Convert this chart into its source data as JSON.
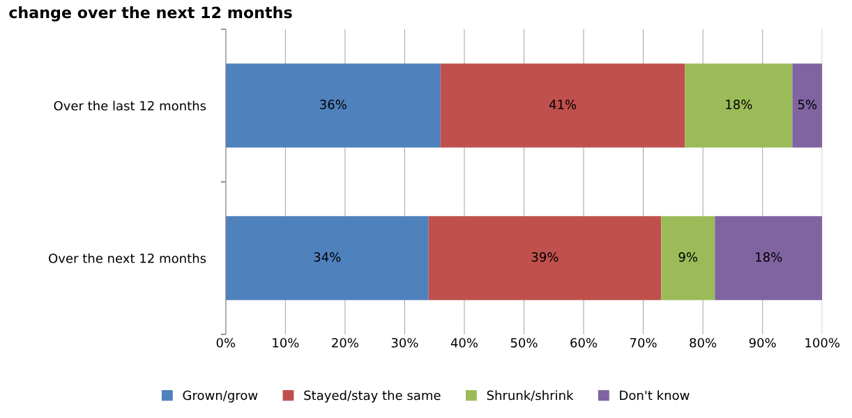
{
  "chart_data": {
    "type": "bar",
    "orientation": "horizontal",
    "stacked": true,
    "title": "change over the next 12 months",
    "categories": [
      "Over the last 12 months",
      "Over the next 12 months"
    ],
    "series": [
      {
        "name": "Grown/grow",
        "color": "#4f81bd",
        "values": [
          36,
          34
        ],
        "value_labels": [
          "36%",
          "34%"
        ]
      },
      {
        "name": "Stayed/stay the same",
        "color": "#c0504d",
        "values": [
          41,
          39
        ],
        "value_labels": [
          "41%",
          "39%"
        ]
      },
      {
        "name": "Shrunk/shrink",
        "color": "#9bbb59",
        "values": [
          18,
          9
        ],
        "value_labels": [
          "18%",
          "9%"
        ]
      },
      {
        "name": "Don't know",
        "color": "#8064a2",
        "values": [
          5,
          18
        ],
        "value_labels": [
          "5%",
          "18%"
        ]
      }
    ],
    "xlim": [
      0,
      100
    ],
    "xticks": [
      {
        "value": 0,
        "label": "0%"
      },
      {
        "value": 10,
        "label": "10%"
      },
      {
        "value": 20,
        "label": "20%"
      },
      {
        "value": 30,
        "label": "30%"
      },
      {
        "value": 40,
        "label": "40%"
      },
      {
        "value": 50,
        "label": "50%"
      },
      {
        "value": 60,
        "label": "60%"
      },
      {
        "value": 70,
        "label": "70%"
      },
      {
        "value": 80,
        "label": "80%"
      },
      {
        "value": 90,
        "label": "90%"
      },
      {
        "value": 100,
        "label": "100%"
      }
    ],
    "grid": "x",
    "legend": "bottom"
  }
}
